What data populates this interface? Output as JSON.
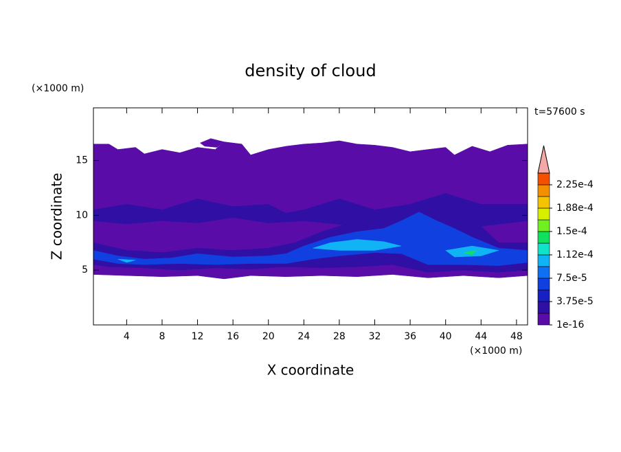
{
  "chart_data": {
    "type": "contour",
    "title": "density of cloud",
    "ylabel": "Z coordinate",
    "xlabel": "X coordinate",
    "yunit": "(×1000 m)",
    "xunit": "(×1000 m)",
    "time_label": "t=57600 s",
    "xlim": [
      0.25,
      49.25
    ],
    "ylim": [
      0,
      19.8
    ],
    "xticks": [
      4,
      8,
      12,
      16,
      20,
      24,
      28,
      32,
      36,
      40,
      44,
      48
    ],
    "yticks": [
      5,
      10,
      15
    ],
    "colorbar": {
      "levels": [
        1e-16,
        1.875e-05,
        3.75e-05,
        5.625e-05,
        7.5e-05,
        9.375e-05,
        0.0001125,
        0.00013125,
        0.00015,
        0.00016875,
        0.0001875,
        0.00020625,
        0.000225,
        0.00024375
      ],
      "colors": [
        "#5a0ca8",
        "#3010a4",
        "#1820c4",
        "#1040e0",
        "#1070f4",
        "#10b4f4",
        "#10e4c8",
        "#10e060",
        "#70f020",
        "#d8f000",
        "#f4c400",
        "#f49000",
        "#f45000",
        "#e02000"
      ],
      "extend_color": "#f4a8a8",
      "ticks": [
        {
          "value": 1e-16,
          "label": "1e-16"
        },
        {
          "value": 3.75e-05,
          "label": "3.75e-5"
        },
        {
          "value": 7.5e-05,
          "label": "7.5e-5"
        },
        {
          "value": 0.0001125,
          "label": "1.12e-4"
        },
        {
          "value": 0.00015,
          "label": "1.5e-4"
        },
        {
          "value": 0.0001875,
          "label": "1.88e-4"
        },
        {
          "value": 0.000225,
          "label": "2.25e-4"
        }
      ]
    },
    "contours": [
      {
        "level": 0,
        "x": [
          0.25,
          2,
          3,
          5,
          6,
          8,
          10,
          12,
          14,
          15,
          17,
          18,
          20,
          22,
          24,
          26,
          28,
          30,
          32,
          34,
          36,
          38,
          40,
          41,
          43,
          45,
          47,
          49.25,
          49.25,
          46,
          42,
          38,
          34,
          30,
          26,
          22,
          18,
          15,
          12,
          8,
          4,
          0.25
        ],
        "z": [
          16.5,
          16.5,
          16,
          16.2,
          15.6,
          16,
          15.7,
          16.2,
          16,
          16.7,
          16.5,
          15.5,
          16,
          16.3,
          16.5,
          16.6,
          16.8,
          16.5,
          16.4,
          16.2,
          15.8,
          16,
          16.2,
          15.5,
          16.3,
          15.8,
          16.4,
          16.5,
          4.5,
          4.3,
          4.5,
          4.3,
          4.6,
          4.4,
          4.5,
          4.4,
          4.5,
          4.2,
          4.5,
          4.4,
          4.5,
          4.6
        ]
      },
      {
        "level": 0,
        "x": [
          12.3,
          13.5,
          15,
          14.2,
          12.8
        ],
        "z": [
          16.6,
          17,
          16.7,
          16.2,
          16.3
        ]
      },
      {
        "level": 1,
        "x": [
          0.25,
          4,
          8,
          12,
          16,
          20,
          22,
          24,
          28,
          32,
          36,
          40,
          44,
          49.25,
          49.25,
          44,
          40,
          36,
          30,
          24,
          20,
          16,
          12,
          8,
          4,
          0.25
        ],
        "z": [
          10.5,
          11,
          10.5,
          11.5,
          10.8,
          11,
          10.2,
          10.5,
          11.5,
          10.5,
          11,
          12,
          11,
          11,
          9.5,
          9,
          9.5,
          9,
          9,
          9.5,
          9.3,
          9.8,
          9.3,
          9.5,
          9.2,
          9.5
        ]
      },
      {
        "level": 1,
        "x": [
          0.25,
          4,
          8,
          12,
          16,
          20,
          23,
          26,
          30,
          33,
          36,
          38,
          40,
          42,
          44,
          46,
          49.25,
          49.25,
          46,
          42,
          38,
          34,
          30,
          26,
          22,
          18,
          14,
          10,
          6,
          2,
          0.25
        ],
        "z": [
          7.5,
          6.8,
          6.6,
          7,
          6.8,
          7,
          7.5,
          8.5,
          9.5,
          10.5,
          11,
          11.5,
          11,
          10,
          9,
          7.5,
          7.5,
          5,
          4.8,
          5,
          4.8,
          5.5,
          5.3,
          5.2,
          5.3,
          5.1,
          5.2,
          5,
          5.2,
          5.3,
          5.5
        ]
      },
      {
        "level": 3,
        "x": [
          0.25,
          3,
          6,
          9,
          12,
          16,
          20,
          22,
          24,
          27,
          30,
          33,
          35,
          37,
          39,
          41,
          43,
          46,
          49.25,
          49.25,
          46,
          42,
          38,
          35,
          32,
          28,
          25,
          22,
          18,
          14,
          10,
          6,
          3,
          0.25
        ],
        "z": [
          6.8,
          6.3,
          6,
          6.1,
          6.5,
          6.2,
          6.3,
          6.5,
          7.2,
          8,
          8.5,
          8.8,
          9.5,
          10.3,
          9.5,
          8.8,
          8,
          7,
          6.8,
          5.7,
          5.4,
          5.5,
          5.5,
          6.5,
          6.6,
          6.3,
          6,
          5.6,
          5.6,
          5.5,
          5.6,
          5.5,
          5.6,
          6
        ]
      },
      {
        "level": 5,
        "x": [
          25,
          27,
          30,
          33,
          35,
          32,
          28
        ],
        "z": [
          7,
          7.5,
          7.8,
          7.6,
          7.2,
          6.8,
          6.8
        ]
      },
      {
        "level": 5,
        "x": [
          40,
          43,
          46,
          44,
          41
        ],
        "z": [
          6.8,
          7.2,
          6.8,
          6.3,
          6.2
        ]
      },
      {
        "level": 5,
        "x": [
          3,
          5,
          4
        ],
        "z": [
          6,
          5.9,
          5.7
        ]
      },
      {
        "level": 7,
        "x": [
          42,
          43.5,
          43
        ],
        "z": [
          6.6,
          6.8,
          6.4
        ]
      }
    ]
  }
}
